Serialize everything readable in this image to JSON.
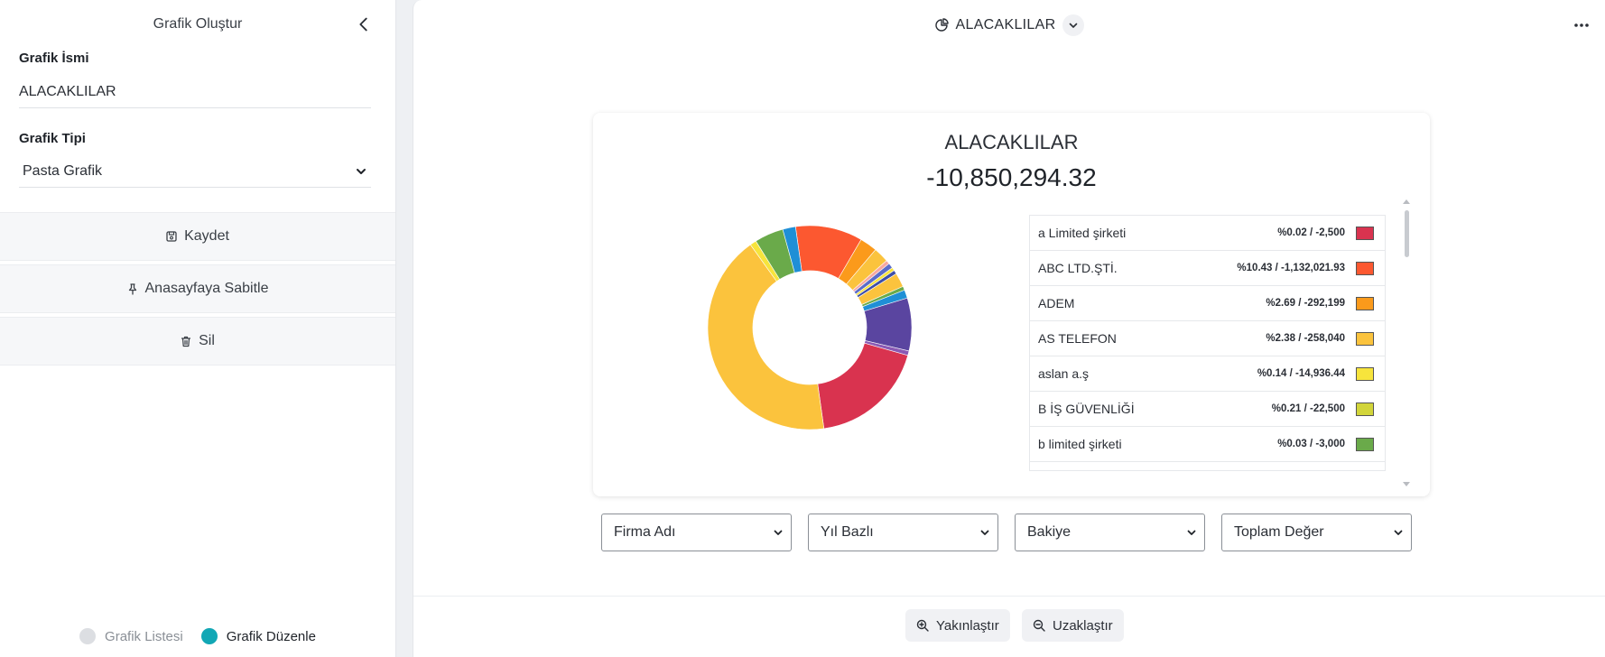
{
  "sidebar": {
    "title": "Grafik Oluştur",
    "name_label": "Grafik İsmi",
    "name_value": "ALACAKLILAR",
    "type_label": "Grafik Tipi",
    "type_value": "Pasta Grafik",
    "save_label": "Kaydet",
    "pin_label": "Anasayfaya Sabitle",
    "delete_label": "Sil",
    "tabs": [
      {
        "label": "Grafik Listesi",
        "color": "#dcdee2"
      },
      {
        "label": "Grafik Düzenle",
        "color": "#12a7b5"
      }
    ]
  },
  "main": {
    "header_title": "ALACAKLILAR",
    "card_title": "ALACAKLILAR",
    "card_value": "-10,850,294.32",
    "legend": [
      {
        "name": "a Limited şirketi",
        "value": "%0.02 / -2,500",
        "color": "#d9334f"
      },
      {
        "name": "ABC LTD.ŞTİ.",
        "value": "%10.43 / -1,132,021.93",
        "color": "#fc5830"
      },
      {
        "name": "ADEM",
        "value": "%2.69 / -292,199",
        "color": "#fb9a1b"
      },
      {
        "name": "AS TELEFON",
        "value": "%2.38 / -258,040",
        "color": "#fbc33d"
      },
      {
        "name": "aslan a.ş",
        "value": "%0.14 / -14,936.44",
        "color": "#f7e43c"
      },
      {
        "name": "B İŞ GÜVENLİĞİ",
        "value": "%0.21 / -22,500",
        "color": "#d2d53a"
      },
      {
        "name": "b limited şirketi",
        "value": "%0.03 / -3,000",
        "color": "#6aaa4a"
      }
    ],
    "selects": [
      "Firma Adı",
      "Yıl Bazlı",
      "Bakiye",
      "Toplam Değer"
    ],
    "zoom_in_label": "Yakınlaştır",
    "zoom_out_label": "Uzaklaştır"
  },
  "chart_data": {
    "type": "pie",
    "title": "ALACAKLILAR",
    "total": -10850294.32,
    "donut": true,
    "slices": [
      {
        "value": 10.43,
        "color": "#fc5830"
      },
      {
        "value": 2.69,
        "color": "#fb9a1b"
      },
      {
        "value": 2.38,
        "color": "#fbc33d"
      },
      {
        "value": 0.6,
        "color": "#f7a8a0"
      },
      {
        "value": 0.8,
        "color": "#5b6cc9"
      },
      {
        "value": 0.5,
        "color": "#f7e43c"
      },
      {
        "value": 0.6,
        "color": "#3e4fa8"
      },
      {
        "value": 2.2,
        "color": "#fbc33d"
      },
      {
        "value": 0.6,
        "color": "#6aaa4a"
      },
      {
        "value": 1.3,
        "color": "#1f8fd6"
      },
      {
        "value": 8.2,
        "color": "#5a45a0"
      },
      {
        "value": 0.7,
        "color": "#8a59b4"
      },
      {
        "value": 18.0,
        "color": "#d9334f"
      },
      {
        "value": 41.5,
        "color": "#fbc33d"
      },
      {
        "value": 1.0,
        "color": "#f7e43c"
      },
      {
        "value": 4.5,
        "color": "#6aaa4a"
      },
      {
        "value": 2.0,
        "color": "#1f8fd6"
      }
    ]
  }
}
